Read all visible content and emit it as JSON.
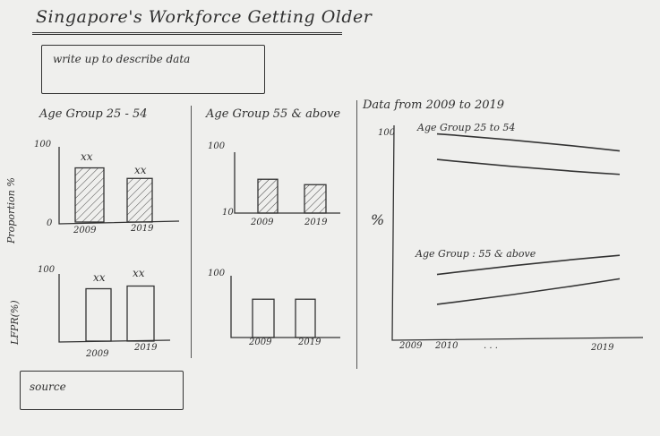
{
  "title": "Singapore's Workforce Getting Older",
  "writeup": "write up to describe data",
  "source": "source",
  "panels": {
    "left_heading": "Age Group 25 - 54",
    "mid_heading": "Age Group 55 & above",
    "right_heading": "Data from 2009 to 2019"
  },
  "y_labels": {
    "top": "Proportion %",
    "bottom": "LFPR(%)",
    "right": "%"
  },
  "tick": {
    "hundred": "100",
    "zero": "0",
    "ten": "10"
  },
  "years": {
    "start": "2009",
    "end": "2019",
    "second": "2010",
    "ellipsis": ". . ."
  },
  "bar_value_label": "xx",
  "line_labels": {
    "top": "Age Group 25 to 54",
    "bottom": "Age Group : 55 & above"
  },
  "chart_data": [
    {
      "type": "bar",
      "id": "prop-25-54",
      "categories": [
        "2009",
        "2019"
      ],
      "values": [
        72,
        58
      ],
      "ylim": [
        0,
        100
      ],
      "data_labels": [
        "xx",
        "xx"
      ],
      "hatched": true
    },
    {
      "type": "bar",
      "id": "prop-55",
      "categories": [
        "2009",
        "2019"
      ],
      "values": [
        60,
        52
      ],
      "ylim": [
        10,
        100
      ],
      "hatched": true
    },
    {
      "type": "bar",
      "id": "lfpr-25-54",
      "categories": [
        "2009",
        "2019"
      ],
      "values": [
        78,
        82
      ],
      "ylim": [
        0,
        100
      ],
      "data_labels": [
        "xx",
        "xx"
      ],
      "hatched": false
    },
    {
      "type": "bar",
      "id": "lfpr-55",
      "categories": [
        "2009",
        "2019"
      ],
      "values": [
        62,
        62
      ],
      "ylim": [
        0,
        100
      ],
      "hatched": false
    },
    {
      "type": "line",
      "id": "trend",
      "xlabels": [
        "2009",
        "2010",
        "...",
        "2019"
      ],
      "series": [
        {
          "name": "Age Group 25 to 54",
          "values": [
            96,
            88
          ]
        },
        {
          "name": "Age Group 25 to 54",
          "values": [
            84,
            77
          ]
        },
        {
          "name": "Age Group : 55 & above",
          "values": [
            30,
            39
          ]
        },
        {
          "name": "Age Group : 55 & above",
          "values": [
            16,
            28
          ]
        }
      ]
    }
  ]
}
